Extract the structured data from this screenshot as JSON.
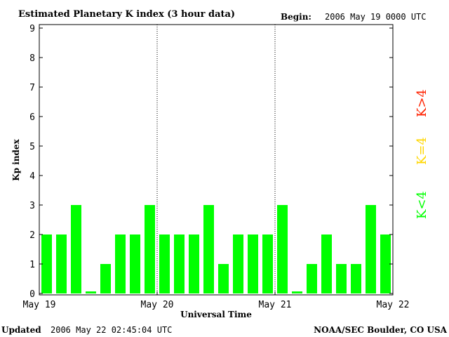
{
  "header": {
    "title": "Estimated Planetary K index (3 hour data)",
    "begin_label": "Begin:",
    "begin_value": "2006 May 19 0000 UTC"
  },
  "footer": {
    "updated_label": "Updated",
    "updated_value": "2006 May 22 02:45:04 UTC",
    "source": "NOAA/SEC Boulder, CO USA"
  },
  "legend": {
    "low": "K<4",
    "eq": "K=4",
    "high": "K>4"
  },
  "colors": {
    "bar": "#00ff00",
    "low": "#00ff00",
    "eq": "#ffd700",
    "high": "#ff2200"
  },
  "chart_data": {
    "type": "bar",
    "title": "Estimated Planetary K index (3 hour data)",
    "xlabel": "Universal Time",
    "ylabel": "Kp index",
    "ylim": [
      0,
      9
    ],
    "y_ticks": [
      "0",
      "1",
      "2",
      "3",
      "4",
      "5",
      "6",
      "7",
      "8",
      "9"
    ],
    "x_tick_labels": [
      "May 19",
      "May 20",
      "May 21",
      "May 22"
    ],
    "interval_hours": 3,
    "day_separators": [
      "May 20",
      "May 21"
    ],
    "grid": false,
    "values": [
      2,
      2,
      3,
      0.07,
      1,
      2,
      2,
      3,
      2,
      2,
      2,
      3,
      1,
      2,
      2,
      2,
      3,
      0.07,
      1,
      2,
      1,
      1,
      3,
      2
    ]
  }
}
